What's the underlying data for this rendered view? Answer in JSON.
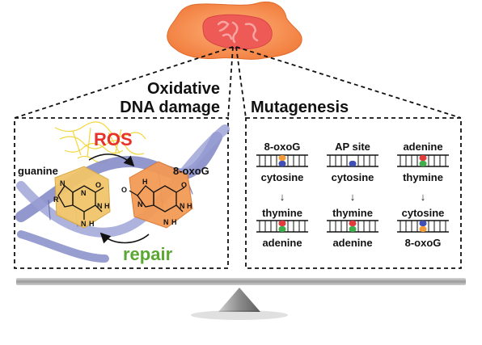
{
  "panel_left": {
    "title_line1": "Oxidative",
    "title_line2": "DNA damage",
    "ros_label": "ROS",
    "guanine_label": "guanine",
    "oxog_label": "8-oxoG",
    "repair_label": "repair",
    "colors": {
      "ros": "#e8312a",
      "repair": "#5aa832",
      "guanine": "#f2c56a",
      "oxog": "#f39a55",
      "helix": "#7f86c6"
    }
  },
  "panel_right": {
    "title": "Mutagenesis",
    "columns": [
      {
        "top_label": "8-oxoG",
        "mid_label": "cytosine",
        "bottom_top_label": "thymine",
        "bottom_label": "adenine"
      },
      {
        "top_label": "AP site",
        "mid_label": "cytosine",
        "bottom_top_label": "thymine",
        "bottom_label": "adenine"
      },
      {
        "top_label": "adenine",
        "mid_label": "thymine",
        "bottom_top_label": "cytosine",
        "bottom_label": "8-oxoG"
      }
    ],
    "arrow_glyph": "↓",
    "colors": {
      "orange": "#f39a3a",
      "blue": "#3f4fb5",
      "red": "#e23b3b",
      "green": "#3fae4a"
    }
  },
  "chem_atoms": {
    "N": "N",
    "H": "H",
    "R": "R",
    "O": "O"
  }
}
